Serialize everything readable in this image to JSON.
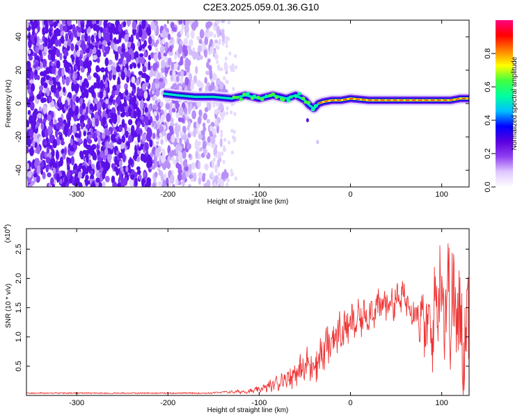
{
  "page_title": "C2E3.2025.059.01.36.G10",
  "chart_data": [
    {
      "type": "heatmap",
      "xlabel": "Height of straight line (km)",
      "ylabel": "Frequency (Hz)",
      "xlim": [
        -355,
        130
      ],
      "ylim": [
        -50,
        50
      ],
      "xticks": [
        -300,
        -200,
        -100,
        0,
        100
      ],
      "yticks": [
        -40,
        -20,
        0,
        20,
        40
      ],
      "colorbar": {
        "label": "Normalized spectral amplitude",
        "range": [
          0,
          1
        ],
        "ticks": [
          0.0,
          0.2,
          0.4,
          0.6,
          0.8
        ],
        "tick_labels": [
          "0.0",
          "0.2",
          "0.4",
          "0.6",
          "0.8"
        ],
        "colors": [
          "#ffffff",
          "#e0c8ff",
          "#9040f0",
          "#5a00e0",
          "#0000ff",
          "#00c0ff",
          "#00ffa0",
          "#40ff40",
          "#ffff00",
          "#ff8000",
          "#ff0000",
          "#ff0080"
        ]
      },
      "ridge": {
        "x": [
          -205,
          -190,
          -170,
          -150,
          -130,
          -115,
          -100,
          -85,
          -70,
          -60,
          -50,
          -45,
          -40,
          -35,
          -30,
          -20,
          -10,
          0,
          20,
          50,
          80,
          100,
          110,
          120,
          130
        ],
        "freq": [
          6,
          5,
          4,
          4,
          3,
          5,
          3,
          5,
          3,
          5,
          2,
          -1,
          -3,
          0,
          1,
          2,
          2,
          3,
          2,
          2,
          2,
          2,
          2,
          3,
          3
        ]
      }
    },
    {
      "type": "line",
      "xlabel": "Height of straight line (km)",
      "ylabel": "SNR (10 * v/v)",
      "y_multiplier": "(x10",
      "y_multiplier_exp": "4",
      "y_multiplier_close": ")",
      "xlim": [
        -355,
        130
      ],
      "ylim": [
        0,
        2.85
      ],
      "xticks": [
        -300,
        -200,
        -100,
        0,
        100
      ],
      "yticks": [
        0.5,
        1.0,
        1.5,
        2.0,
        2.5
      ],
      "ytick_labels": [
        "0.5",
        "1.0",
        "1.5",
        "2.0",
        "2.5"
      ],
      "series": [
        {
          "color": "#ee3333",
          "x": [
            -355,
            -150,
            -110,
            -100,
            -90,
            -80,
            -70,
            -60,
            -50,
            -40,
            -30,
            -20,
            -10,
            0,
            10,
            20,
            30,
            40,
            50,
            60,
            65,
            70,
            80,
            90,
            95,
            100,
            105,
            110,
            115,
            120,
            125,
            130
          ],
          "y": [
            0.04,
            0.05,
            0.07,
            0.1,
            0.15,
            0.22,
            0.3,
            0.38,
            0.48,
            0.56,
            0.72,
            0.95,
            1.1,
            1.2,
            1.3,
            1.42,
            1.5,
            1.58,
            1.62,
            1.68,
            1.55,
            1.5,
            1.2,
            1.1,
            1.8,
            1.9,
            1.6,
            1.7,
            1.4,
            1.2,
            1.0,
            1.4
          ],
          "noise": [
            0.0,
            0.01,
            0.03,
            0.05,
            0.08,
            0.12,
            0.16,
            0.2,
            0.25,
            0.3,
            0.3,
            0.3,
            0.3,
            0.28,
            0.26,
            0.25,
            0.25,
            0.25,
            0.25,
            0.22,
            0.25,
            0.3,
            0.45,
            0.6,
            0.7,
            0.85,
            0.9,
            0.95,
            0.95,
            0.9,
            0.8,
            0.7
          ]
        }
      ]
    }
  ]
}
